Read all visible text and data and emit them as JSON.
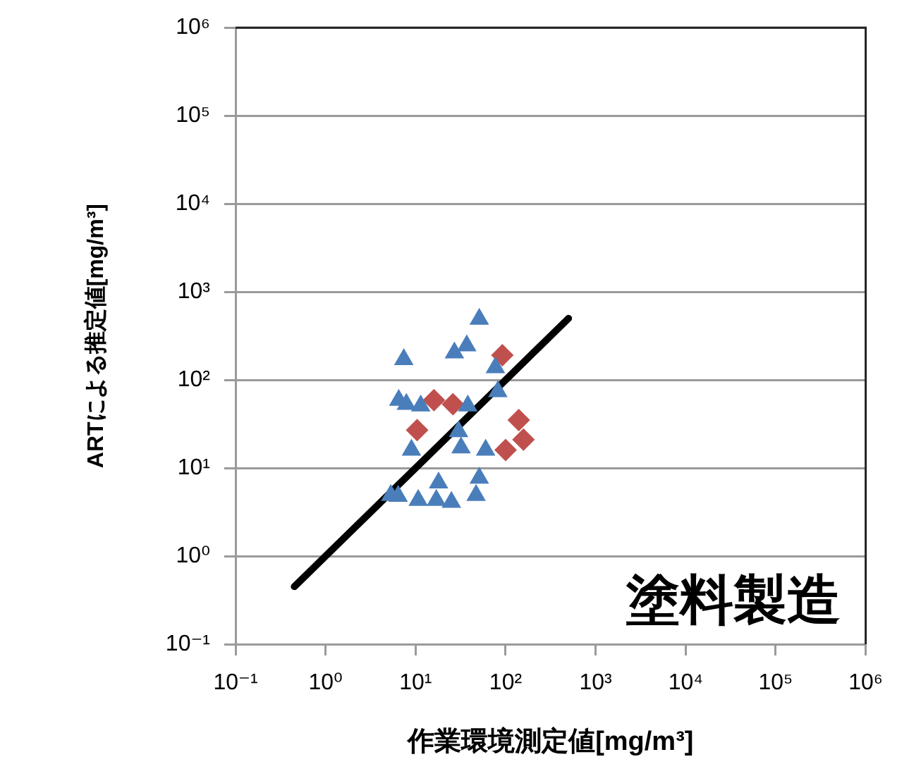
{
  "chart_data": {
    "type": "scatter",
    "xlabel": "作業環境測定値[mg/m³]",
    "ylabel": "ARTによる推定値[mg/m³]",
    "annotations": [
      "塗料製造"
    ],
    "log": "xy",
    "xlim": [
      0.1,
      1000000
    ],
    "ylim": [
      0.1,
      1000000
    ],
    "xticks": [
      {
        "value": 0.1,
        "label": "10⁻¹"
      },
      {
        "value": 1,
        "label": "10⁰"
      },
      {
        "value": 10,
        "label": "10¹"
      },
      {
        "value": 100,
        "label": "10²"
      },
      {
        "value": 1000,
        "label": "10³"
      },
      {
        "value": 10000,
        "label": "10⁴"
      },
      {
        "value": 100000,
        "label": "10⁵"
      },
      {
        "value": 1000000,
        "label": "10⁶"
      }
    ],
    "yticks": [
      {
        "value": 0.1,
        "label": "10⁻¹"
      },
      {
        "value": 1,
        "label": "10⁰"
      },
      {
        "value": 10,
        "label": "10¹"
      },
      {
        "value": 100,
        "label": "10²"
      },
      {
        "value": 1000,
        "label": "10³"
      },
      {
        "value": 10000,
        "label": "10⁴"
      },
      {
        "value": 100000,
        "label": "10⁵"
      },
      {
        "value": 1000000,
        "label": "10⁶"
      }
    ],
    "grid": "y",
    "legend": false,
    "series": [
      {
        "type": "scatter",
        "marker": "triangle",
        "color": "#4a7ebb",
        "x": [
          51,
          37,
          27,
          7.4,
          77,
          82,
          6.5,
          7.9,
          11.4,
          38,
          30,
          32,
          9,
          60,
          51,
          47,
          18,
          5.3,
          6.4,
          10.7,
          17,
          25
        ],
        "values": [
          490,
          245,
          204,
          171,
          138,
          74,
          59,
          53,
          51,
          51,
          26,
          17,
          16,
          16,
          7.7,
          4.9,
          6.8,
          4.9,
          4.8,
          4.3,
          4.3,
          4.1
        ]
      },
      {
        "type": "scatter",
        "marker": "diamond",
        "color": "#c0504d",
        "x": [
          92,
          16,
          26,
          10.4,
          140,
          158,
          100
        ],
        "values": [
          191,
          59,
          53,
          27,
          35,
          21,
          16
        ]
      },
      {
        "type": "line",
        "marker": "none",
        "line_style": "solid",
        "color": "#000000",
        "x": [
          0.45,
          500
        ],
        "values": [
          0.45,
          500
        ]
      }
    ]
  }
}
